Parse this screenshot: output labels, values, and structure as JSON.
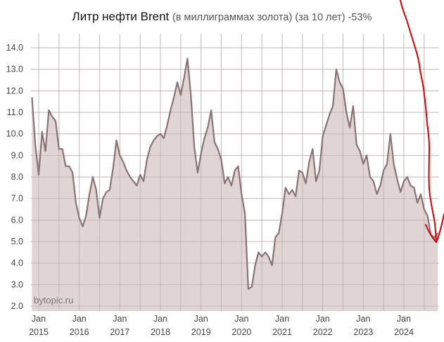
{
  "title": {
    "main": "Литр нефти Brent",
    "sub": "(в миллиграммах золота) (за 10 лет) -53%"
  },
  "watermark": "bytopic.ru",
  "colors": {
    "line": "#8a7375",
    "fill": "#e0d4d5",
    "grid": "#d8d8d8",
    "annotation_arrow": "#dd0000"
  },
  "chart_data": {
    "type": "area",
    "title": "Литр нефти Brent (в миллиграммах золота) (за 10 лет) -53%",
    "xlabel": "",
    "ylabel": "",
    "ylim": [
      2.0,
      14.0
    ],
    "yticks": [
      "14.0",
      "13.0",
      "12.0",
      "11.0",
      "10.0",
      "9.0",
      "8.0",
      "7.0",
      "6.0",
      "5.0",
      "4.0",
      "3.0",
      "2.0"
    ],
    "xticks": [
      {
        "month": "Jan",
        "year": "2015"
      },
      {
        "month": "Jan",
        "year": "2016"
      },
      {
        "month": "Jan",
        "year": "2017"
      },
      {
        "month": "Jan",
        "year": "2018"
      },
      {
        "month": "Jan",
        "year": "2019"
      },
      {
        "month": "Jan",
        "year": "2020"
      },
      {
        "month": "Jan",
        "year": "2021"
      },
      {
        "month": "Jan",
        "year": "2022"
      },
      {
        "month": "Jan",
        "year": "2023"
      },
      {
        "month": "Jan",
        "year": "2024"
      }
    ],
    "grid": true,
    "legend": "none",
    "x_start": "2014-11",
    "x_step": "1 month",
    "values": [
      11.7,
      9.5,
      8.1,
      10.1,
      9.2,
      11.1,
      10.8,
      10.6,
      9.3,
      9.3,
      8.5,
      8.5,
      8.2,
      6.8,
      6.1,
      5.7,
      6.2,
      7.2,
      8.0,
      7.4,
      6.1,
      7.0,
      7.3,
      7.4,
      8.4,
      9.7,
      9.0,
      8.7,
      8.3,
      8.0,
      7.8,
      7.6,
      8.1,
      7.8,
      8.8,
      9.4,
      9.7,
      9.9,
      10.0,
      9.8,
      10.4,
      11.1,
      11.7,
      12.4,
      11.8,
      12.6,
      13.5,
      11.8,
      9.4,
      8.2,
      9.1,
      9.8,
      10.3,
      11.1,
      9.6,
      9.3,
      8.8,
      7.7,
      8.0,
      7.6,
      8.3,
      8.5,
      7.2,
      6.3,
      2.8,
      2.9,
      3.9,
      4.5,
      4.3,
      4.5,
      4.3,
      3.9,
      5.2,
      5.4,
      6.3,
      7.5,
      7.2,
      7.4,
      7.1,
      8.3,
      8.2,
      7.7,
      8.7,
      9.3,
      7.8,
      8.3,
      9.9,
      10.4,
      10.9,
      11.3,
      13.0,
      12.4,
      12.1,
      11.0,
      10.3,
      11.3,
      9.5,
      9.2,
      8.6,
      9.0,
      8.0,
      7.8,
      7.2,
      7.6,
      8.3,
      8.6,
      10.0,
      8.6,
      7.9,
      7.3,
      7.8,
      8.0,
      7.6,
      7.5,
      6.8,
      7.2,
      6.5,
      6.2,
      5.3,
      5.2,
      5.4
    ]
  },
  "annotation": {
    "type": "hand-drawn-arrow",
    "color": "#dd0000",
    "points_to": "end of series (late 2024)"
  }
}
